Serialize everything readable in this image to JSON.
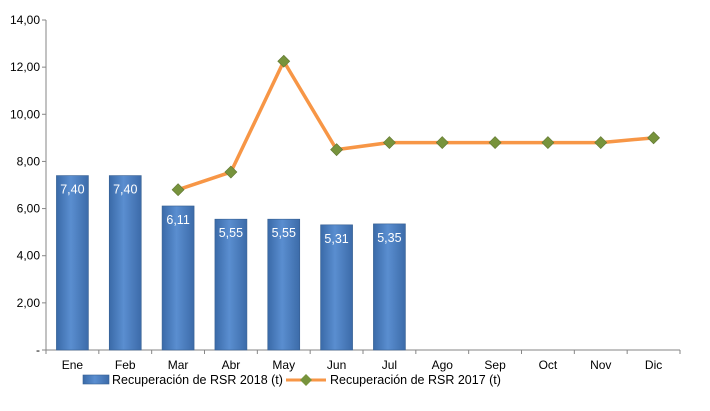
{
  "chart_data": {
    "type": "bar+line",
    "categories": [
      "Ene",
      "Feb",
      "Mar",
      "Abr",
      "May",
      "Jun",
      "Jul",
      "Ago",
      "Sep",
      "Oct",
      "Nov",
      "Dic"
    ],
    "y_ticks": [
      "-",
      "2,00",
      "4,00",
      "6,00",
      "8,00",
      "10,00",
      "12,00",
      "14,00"
    ],
    "ylim": [
      0,
      14
    ],
    "grid": false,
    "legend_position": "bottom",
    "series": [
      {
        "name": "Recuperación de RSR 2018 (t)",
        "kind": "bar",
        "color": "#4F81BD",
        "values": [
          7.4,
          7.4,
          6.11,
          5.55,
          5.55,
          5.31,
          5.35,
          null,
          null,
          null,
          null,
          null
        ],
        "labels": [
          "7,40",
          "7,40",
          "6,11",
          "5,55",
          "5,55",
          "5,31",
          "5,35",
          "",
          "",
          "",
          "",
          ""
        ]
      },
      {
        "name": "Recuperación de RSR 2017 (t)",
        "kind": "line",
        "color": "#F79646",
        "marker_color": "#77933C",
        "values": [
          null,
          null,
          6.8,
          7.55,
          12.25,
          8.5,
          8.8,
          8.8,
          8.8,
          8.8,
          8.8,
          9.0
        ]
      }
    ]
  }
}
